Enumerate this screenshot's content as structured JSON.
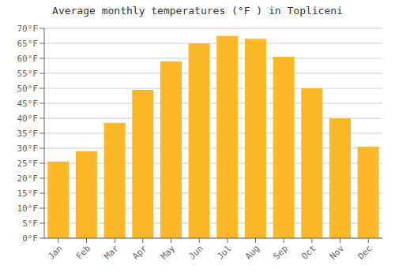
{
  "chart_data": {
    "type": "bar",
    "title": "Average monthly temperatures (°F ) in Topliceni",
    "categories": [
      "Jan",
      "Feb",
      "Mar",
      "Apr",
      "May",
      "Jun",
      "Jul",
      "Aug",
      "Sep",
      "Oct",
      "Nov",
      "Dec"
    ],
    "values": [
      25.5,
      29.0,
      38.5,
      49.5,
      59.0,
      65.0,
      67.5,
      66.5,
      60.5,
      50.0,
      40.0,
      30.5
    ],
    "color": "#FDB827",
    "ylim": [
      0,
      70
    ],
    "yticks": [
      {
        "value": 0,
        "label": "0°F"
      },
      {
        "value": 5,
        "label": "5°F"
      },
      {
        "value": 10,
        "label": "10°F"
      },
      {
        "value": 15,
        "label": "15°F"
      },
      {
        "value": 20,
        "label": "20°F"
      },
      {
        "value": 25,
        "label": "25°F"
      },
      {
        "value": 30,
        "label": "30°F"
      },
      {
        "value": 35,
        "label": "35°F"
      },
      {
        "value": 40,
        "label": "40°F"
      },
      {
        "value": 45,
        "label": "45°F"
      },
      {
        "value": 50,
        "label": "50°F"
      },
      {
        "value": 55,
        "label": "55°F"
      },
      {
        "value": 60,
        "label": "60°F"
      },
      {
        "value": 65,
        "label": "65°F"
      },
      {
        "value": 70,
        "label": "70°F"
      }
    ],
    "grid": true
  }
}
